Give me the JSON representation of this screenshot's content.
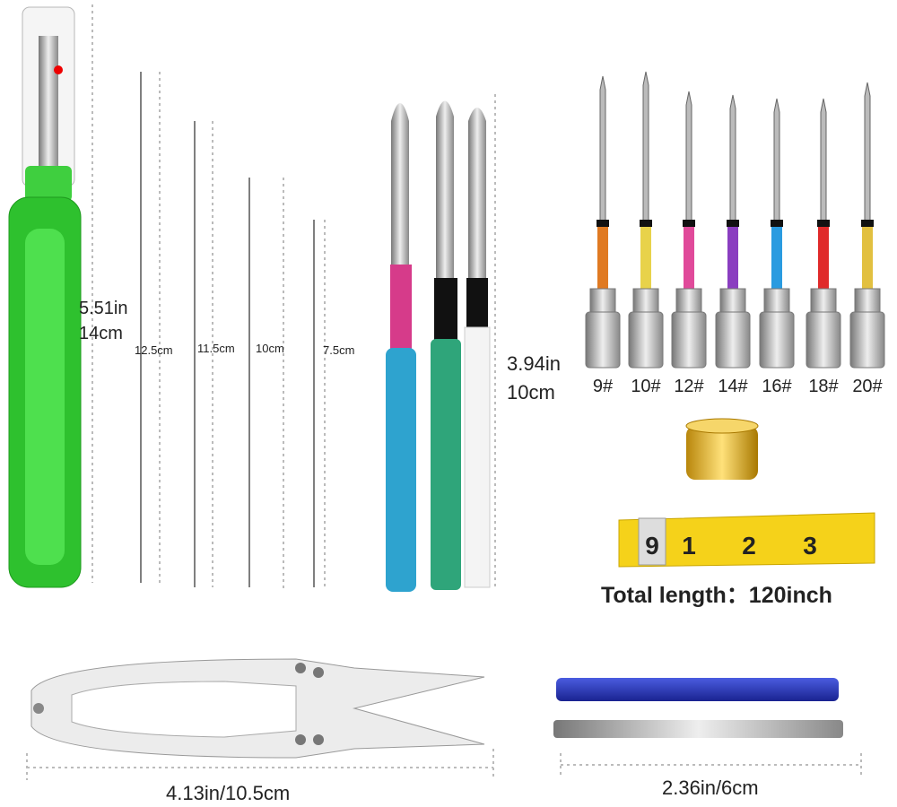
{
  "seam_ripper": {
    "length_in": "5.51in",
    "length_cm": "14cm"
  },
  "long_needles": {
    "lengths": [
      "12.5cm",
      "11.5cm",
      "10cm",
      "7.5cm"
    ]
  },
  "punch_needles": {
    "length_in": "3.94in",
    "length_cm": "10cm"
  },
  "embroidery_needles": {
    "sizes": [
      "9#",
      "10#",
      "12#",
      "14#",
      "16#",
      "18#",
      "20#"
    ]
  },
  "tape_measure": {
    "marks": [
      "9",
      "1",
      "2",
      "3"
    ],
    "caption": "Total length：120inch"
  },
  "scissors": {
    "length": "4.13in/10.5cm"
  },
  "threader": {
    "length": "2.36in/6cm"
  }
}
